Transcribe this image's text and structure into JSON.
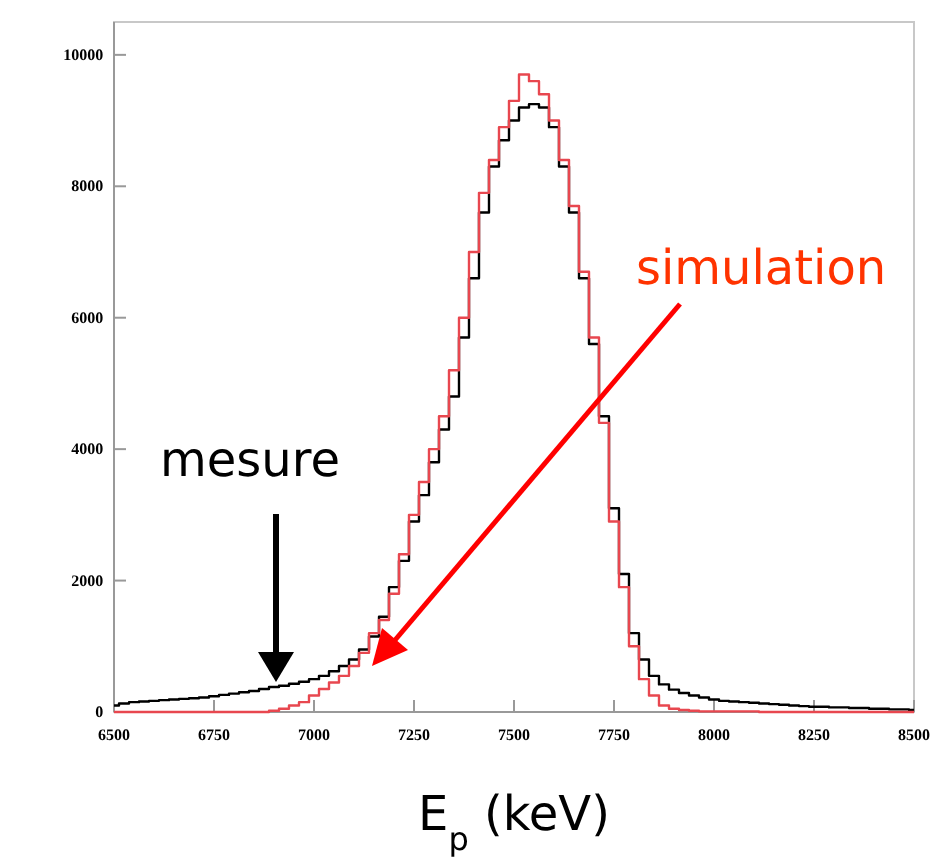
{
  "chart_data": {
    "type": "step",
    "xlabel": "E$_{p}$ (keV)",
    "x": [
      6500,
      6525,
      6550,
      6575,
      6600,
      6625,
      6650,
      6675,
      6700,
      6725,
      6750,
      6775,
      6800,
      6825,
      6850,
      6875,
      6900,
      6925,
      6950,
      6975,
      7000,
      7025,
      7050,
      7075,
      7100,
      7125,
      7150,
      7175,
      7200,
      7225,
      7250,
      7275,
      7300,
      7325,
      7350,
      7375,
      7400,
      7425,
      7450,
      7475,
      7500,
      7525,
      7550,
      7575,
      7600,
      7625,
      7650,
      7675,
      7700,
      7725,
      7750,
      7775,
      7800,
      7825,
      7850,
      7875,
      7900,
      7925,
      7950,
      7975,
      8000,
      8025,
      8050,
      8075,
      8100,
      8125,
      8150,
      8175,
      8200,
      8225,
      8250,
      8275,
      8300,
      8325,
      8350,
      8375,
      8400,
      8425,
      8450,
      8475,
      8500
    ],
    "series": [
      {
        "name": "mesure",
        "color": "#000000",
        "values": [
          100,
          130,
          150,
          160,
          170,
          180,
          190,
          200,
          210,
          220,
          240,
          260,
          280,
          300,
          320,
          350,
          380,
          400,
          430,
          460,
          500,
          550,
          620,
          700,
          800,
          950,
          1150,
          1450,
          1900,
          2300,
          2900,
          3300,
          3800,
          4300,
          4800,
          5700,
          6600,
          7600,
          8300,
          8700,
          9000,
          9200,
          9250,
          9200,
          8900,
          8300,
          7600,
          6600,
          5600,
          4500,
          3100,
          2100,
          1200,
          800,
          550,
          420,
          340,
          290,
          250,
          220,
          190,
          170,
          160,
          150,
          140,
          130,
          120,
          110,
          100,
          90,
          80,
          80,
          70,
          70,
          60,
          60,
          50,
          50,
          40,
          40,
          30
        ]
      },
      {
        "name": "simulation",
        "color": "#e8474f",
        "values": [
          0,
          0,
          0,
          0,
          0,
          0,
          0,
          0,
          0,
          0,
          0,
          0,
          0,
          0,
          0,
          0,
          20,
          50,
          100,
          150,
          250,
          350,
          450,
          550,
          700,
          900,
          1200,
          1400,
          1800,
          2400,
          3000,
          3500,
          4000,
          4500,
          5200,
          6000,
          7000,
          7900,
          8400,
          8900,
          9300,
          9700,
          9600,
          9400,
          9000,
          8400,
          7700,
          6700,
          5700,
          4400,
          2900,
          1900,
          1000,
          500,
          250,
          100,
          50,
          30,
          20,
          10,
          10,
          10,
          10,
          10,
          10,
          0,
          0,
          0,
          0,
          0,
          0,
          0,
          0,
          0,
          0,
          0,
          0,
          0,
          0,
          0,
          0
        ]
      }
    ],
    "xlim": [
      6500,
      8500
    ],
    "xticks": [
      6500,
      6750,
      7000,
      7250,
      7500,
      7750,
      8000,
      8250,
      8500
    ],
    "ylim": [
      0,
      10500
    ],
    "yticks": [
      0,
      2000,
      4000,
      6000,
      8000,
      10000
    ],
    "grid": false
  }
}
